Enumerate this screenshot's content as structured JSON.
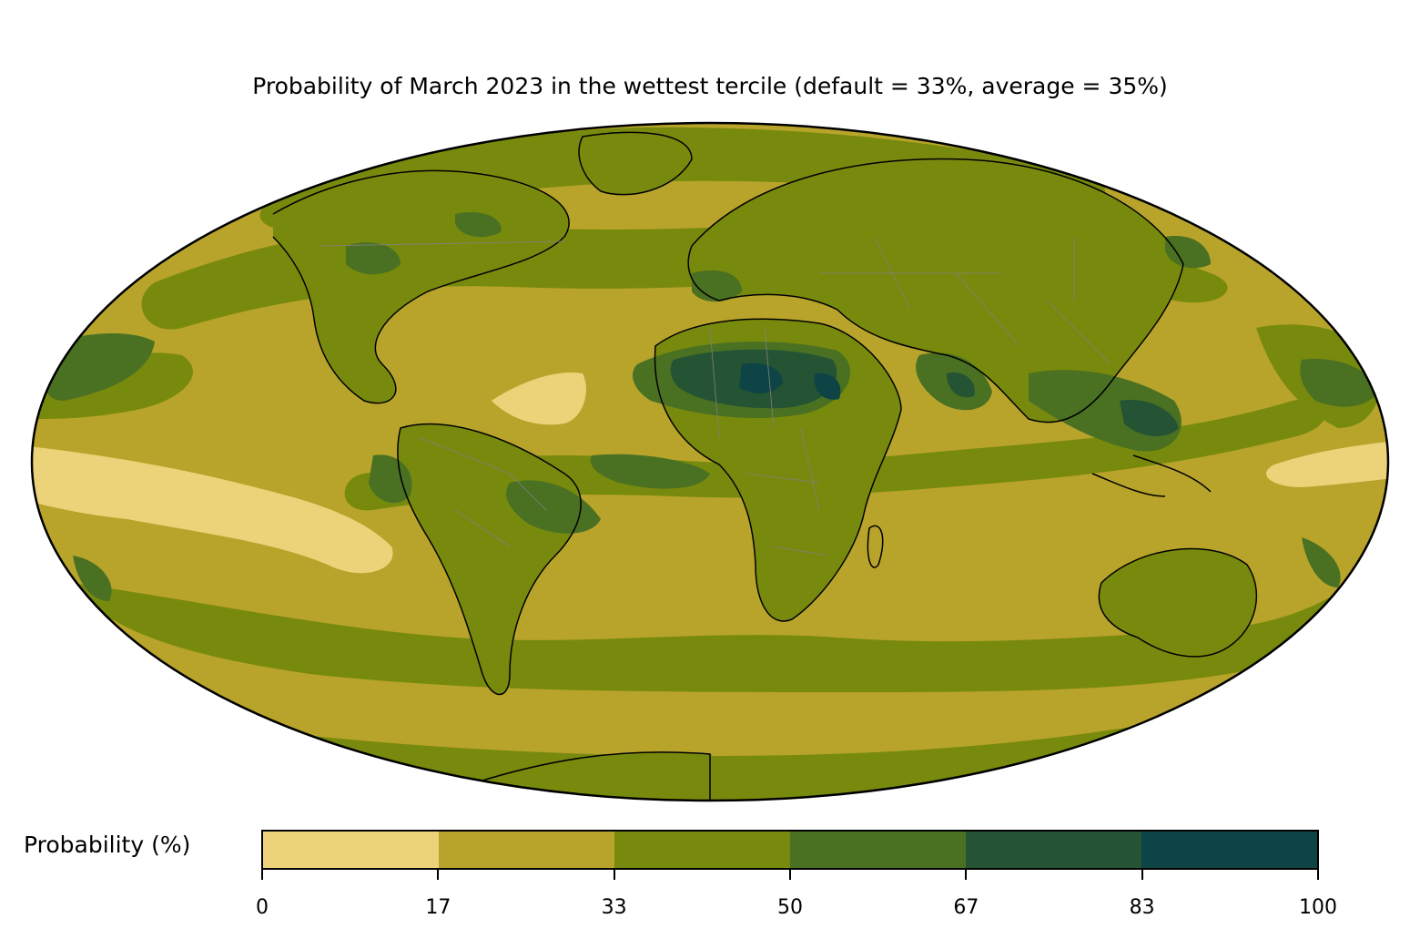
{
  "title": "Probability of March 2023 in the wettest tercile (default = 33%, average = 35%)",
  "colorbar": {
    "label": "Probability (%)",
    "ticks": [
      "0",
      "17",
      "33",
      "50",
      "67",
      "83",
      "100"
    ],
    "colors": [
      "#ecd37a",
      "#b8a42b",
      "#788a0d",
      "#4a7022",
      "#245434",
      "#0e4446"
    ]
  },
  "map": {
    "projection": "mollweide",
    "ocean_base_color": "#b8a42b",
    "land_base_color": "#788a0d",
    "coastline_color": "#000000",
    "border_color": "#808080"
  }
}
